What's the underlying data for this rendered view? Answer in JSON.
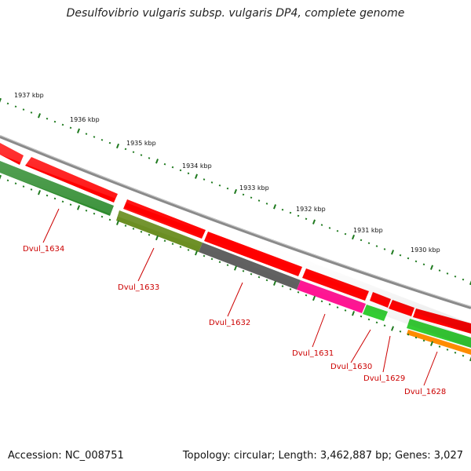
{
  "title": "Desulfovibrio vulgaris subsp. vulgaris DP4, complete genome",
  "footer": {
    "accession": "Accession: NC_008751",
    "summary": "Topology: circular; Length: 3,462,887 bp; Genes: 3,027"
  },
  "colors": {
    "backbone": "#8a8a8a",
    "forward_gene": "#ff0000",
    "tick": "#1f7a1f",
    "label": "#cc0000",
    "gene_1634": "#2e8b2e",
    "gene_1633": "#6b8e23",
    "gene_1632": "#606060",
    "gene_1631": "#ff1493",
    "gene_1630": "#33cc33",
    "gene_1628": "#ff8c00"
  },
  "kbp_labels": [
    "1937 kbp",
    "1936 kbp",
    "1935 kbp",
    "1934 kbp",
    "1933 kbp",
    "1932 kbp",
    "1931 kbp",
    "1930 kbp"
  ],
  "gene_labels": [
    "Dvul_1634",
    "Dvul_1633",
    "Dvul_1632",
    "Dvul_1631",
    "Dvul_1630",
    "Dvul_1629",
    "Dvul_1628"
  ]
}
